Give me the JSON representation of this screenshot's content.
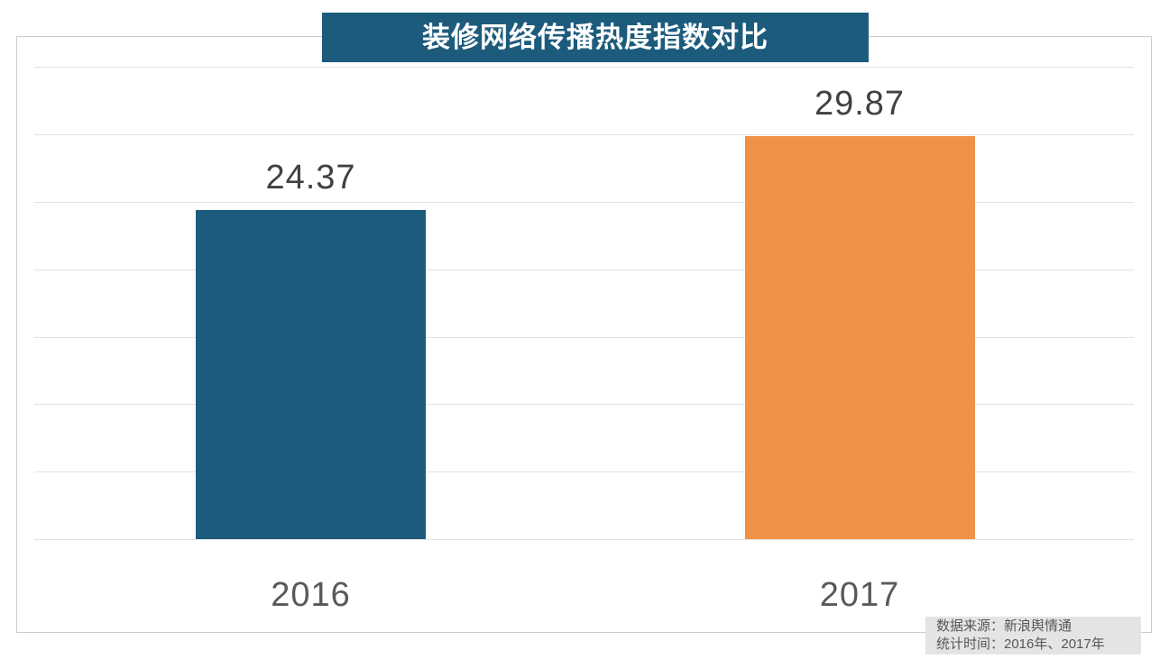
{
  "title": "装修网络传播热度指数对比",
  "source_note": {
    "line1": "数据来源：新浪舆情通",
    "line2": "统计时间：2016年、2017年"
  },
  "colors": {
    "title_bg": "#1d5b7c",
    "title_text": "#ffffff",
    "bar_2016": "#1d5b7c",
    "bar_2017": "#ef9147",
    "gridline": "#e2e2e2",
    "plot_border": "#cccccc",
    "value_text": "#414141",
    "axis_text": "#595959",
    "footer_bg": "#e4e4e4",
    "footer_text": "#575757"
  },
  "chart_data": {
    "type": "bar",
    "title": "装修网络传播热度指数对比",
    "categories": [
      "2016",
      "2017"
    ],
    "values": [
      24.37,
      29.87
    ],
    "value_labels": [
      "24.37",
      "29.87"
    ],
    "bar_colors": [
      "#1d5b7c",
      "#ef9147"
    ],
    "xlabel": "",
    "ylabel": "",
    "ylim": [
      0,
      37.3
    ],
    "gridline_interval": 5,
    "grid": true,
    "y_tick_labels_shown": false,
    "legend": "none",
    "annotations": [
      "数据来源：新浪舆情通",
      "统计时间：2016年、2017年"
    ]
  }
}
